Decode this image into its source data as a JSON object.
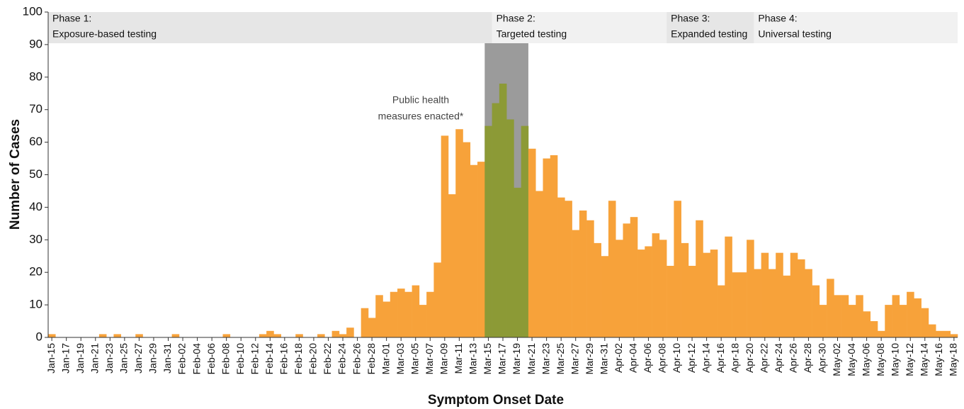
{
  "chart_data": {
    "type": "bar",
    "x_label": "Symptom Onset Date",
    "y_label": "Number of Cases",
    "annotation": [
      "Public health",
      "measures enacted*"
    ],
    "color": "#f7a23a",
    "shade": {
      "start": 60,
      "end": 65,
      "color": "#9b9b9b",
      "bar_color": "#8c9a36"
    },
    "phases": [
      {
        "title": "Phase 1:",
        "label": "Exposure-based testing",
        "start": 0,
        "color": "#e6e6e6"
      },
      {
        "title": "Phase 2:",
        "label": "Targeted testing",
        "start": 61,
        "color": "#f1f1f1"
      },
      {
        "title": "Phase 3:",
        "label": "Expanded testing",
        "start": 85,
        "color": "#e6e6e6"
      },
      {
        "title": "Phase 4:",
        "label": "Universal testing",
        "start": 97,
        "color": "#f1f1f1"
      }
    ],
    "categories": [
      "Jan-15",
      null,
      "Jan-17",
      null,
      "Jan-19",
      null,
      "Jan-21",
      null,
      "Jan-23",
      null,
      "Jan-25",
      null,
      "Jan-27",
      null,
      "Jan-29",
      null,
      "Jan-31",
      null,
      "Feb-02",
      null,
      "Feb-04",
      null,
      "Feb-06",
      null,
      "Feb-08",
      null,
      "Feb-10",
      null,
      "Feb-12",
      null,
      "Feb-14",
      null,
      "Feb-16",
      null,
      "Feb-18",
      null,
      "Feb-20",
      null,
      "Feb-22",
      null,
      "Feb-24",
      null,
      "Feb-26",
      null,
      "Feb-28",
      null,
      "Mar-01",
      null,
      "Mar-03",
      null,
      "Mar-05",
      null,
      "Mar-07",
      null,
      "Mar-09",
      null,
      "Mar-11",
      null,
      "Mar-13",
      null,
      "Mar-15",
      null,
      "Mar-17",
      null,
      "Mar-19",
      null,
      "Mar-21",
      null,
      "Mar-23",
      null,
      "Mar-25",
      null,
      "Mar-27",
      null,
      "Mar-29",
      null,
      "Mar-31",
      null,
      "Apr-02",
      null,
      "Apr-04",
      null,
      "Apr-06",
      null,
      "Apr-08",
      null,
      "Apr-10",
      null,
      "Apr-12",
      null,
      "Apr-14",
      null,
      "Apr-16",
      null,
      "Apr-18",
      null,
      "Apr-20",
      null,
      "Apr-22",
      null,
      "Apr-24",
      null,
      "Apr-26",
      null,
      "Apr-28",
      null,
      "Apr-30",
      null,
      "May-02",
      null,
      "May-04",
      null,
      "May-06",
      null,
      "May-08",
      null,
      "May-10",
      null,
      "May-12",
      null,
      "May-14",
      null,
      "May-16",
      null,
      "May-18"
    ],
    "values": [
      1,
      0,
      0,
      0,
      0,
      0,
      0,
      1,
      0,
      1,
      0,
      0,
      1,
      0,
      0,
      0,
      0,
      1,
      0,
      0,
      0,
      0,
      0,
      0,
      1,
      0,
      0,
      0,
      0,
      1,
      2,
      1,
      0,
      0,
      1,
      0,
      0,
      1,
      0,
      2,
      1,
      3,
      0,
      9,
      6,
      13,
      11,
      14,
      15,
      14,
      16,
      10,
      14,
      23,
      62,
      44,
      64,
      60,
      53,
      54,
      65,
      72,
      78,
      67,
      46,
      65,
      58,
      45,
      55,
      56,
      43,
      42,
      33,
      39,
      36,
      29,
      25,
      42,
      30,
      35,
      37,
      27,
      28,
      32,
      30,
      22,
      42,
      29,
      22,
      36,
      26,
      27,
      16,
      31,
      20,
      20,
      30,
      21,
      26,
      21,
      26,
      19,
      26,
      24,
      21,
      16,
      10,
      18,
      13,
      13,
      10,
      13,
      8,
      5,
      2,
      10,
      13,
      10,
      14,
      12,
      9,
      4,
      2,
      2,
      1
    ],
    "ylim": [
      0,
      100
    ],
    "yticks": [
      0,
      10,
      20,
      30,
      40,
      50,
      60,
      70,
      80,
      90,
      100
    ]
  }
}
